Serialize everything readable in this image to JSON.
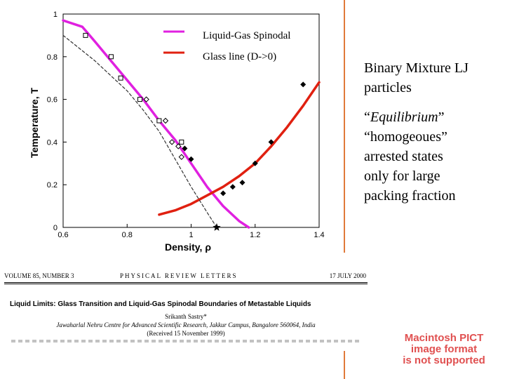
{
  "chart_data": {
    "type": "line",
    "xlabel": "Density, ρ",
    "ylabel": "Temperature, T",
    "xlim": [
      0.6,
      1.4
    ],
    "ylim": [
      0,
      1
    ],
    "xticks": [
      "0.6",
      "0.8",
      "1",
      "1.2",
      "1.4"
    ],
    "yticks": [
      "0",
      "0.2",
      "0.4",
      "0.6",
      "0.8",
      "1"
    ],
    "grid": false,
    "legend_placement": "top-right",
    "series": [
      {
        "name": "Liquid-Gas Spinodal",
        "color": "#e020e0",
        "x": [
          0.6,
          0.66,
          0.7,
          0.75,
          0.8,
          0.85,
          0.9,
          0.95,
          1.0,
          1.05,
          1.1,
          1.15,
          1.18
        ],
        "y": [
          0.97,
          0.94,
          0.87,
          0.78,
          0.69,
          0.6,
          0.5,
          0.41,
          0.3,
          0.19,
          0.1,
          0.03,
          0.0
        ]
      },
      {
        "name": "Glass line (D->0)",
        "color": "#e02010",
        "x": [
          0.9,
          0.95,
          1.0,
          1.05,
          1.1,
          1.15,
          1.2,
          1.25,
          1.3,
          1.35,
          1.4
        ],
        "y": [
          0.06,
          0.08,
          0.11,
          0.15,
          0.19,
          0.24,
          0.3,
          0.38,
          0.47,
          0.57,
          0.68
        ]
      },
      {
        "name": "",
        "color": "#333333",
        "style": "dashed",
        "x": [
          0.6,
          0.65,
          0.7,
          0.75,
          0.8,
          0.85,
          0.9,
          0.95,
          1.0,
          1.05,
          1.08
        ],
        "y": [
          0.9,
          0.84,
          0.78,
          0.71,
          0.64,
          0.55,
          0.45,
          0.32,
          0.19,
          0.07,
          0.0
        ]
      }
    ],
    "markers": [
      {
        "shape": "square-open",
        "points": [
          [
            0.67,
            0.9
          ],
          [
            0.75,
            0.8
          ],
          [
            0.78,
            0.7
          ],
          [
            0.84,
            0.6
          ],
          [
            0.9,
            0.5
          ],
          [
            0.97,
            0.4
          ]
        ]
      },
      {
        "shape": "diamond-open",
        "points": [
          [
            0.86,
            0.6
          ],
          [
            0.92,
            0.5
          ],
          [
            0.94,
            0.4
          ],
          [
            0.96,
            0.38
          ],
          [
            0.97,
            0.33
          ]
        ]
      },
      {
        "shape": "diamond-filled",
        "points": [
          [
            0.98,
            0.37
          ],
          [
            1.0,
            0.32
          ],
          [
            1.1,
            0.16
          ],
          [
            1.13,
            0.19
          ],
          [
            1.16,
            0.21
          ],
          [
            1.2,
            0.3
          ],
          [
            1.25,
            0.4
          ],
          [
            1.35,
            0.67
          ]
        ]
      }
    ],
    "annotations": [
      {
        "shape": "star",
        "x": 1.08,
        "y": 0.0
      }
    ]
  },
  "side": {
    "line1": "Binary Mixture LJ",
    "line2": "particles",
    "line3_q1": "“",
    "line3_em": "Equilibrium",
    "line3_q2": "”",
    "line4": "“homogeoues”",
    "line5": "arrested states",
    "line6": "only for large",
    "line7": "packing fraction"
  },
  "paper": {
    "volume": "VOLUME 85, NUMBER 3",
    "journal": "PHYSICAL REVIEW LETTERS",
    "date": "17 JULY 2000",
    "title": "Liquid Limits: Glass Transition and Liquid-Gas Spinodal Boundaries of Metastable Liquids",
    "author": "Srikanth Sastry*",
    "affiliation": "Jawaharlal Nehru Centre for Advanced Scientific Research, Jakkur Campus, Bangalore 560064, India",
    "received": "(Received 15 November 1999)"
  },
  "pict": {
    "line1": "Macintosh PICT",
    "line2": "image format",
    "line3": "is not supported"
  }
}
